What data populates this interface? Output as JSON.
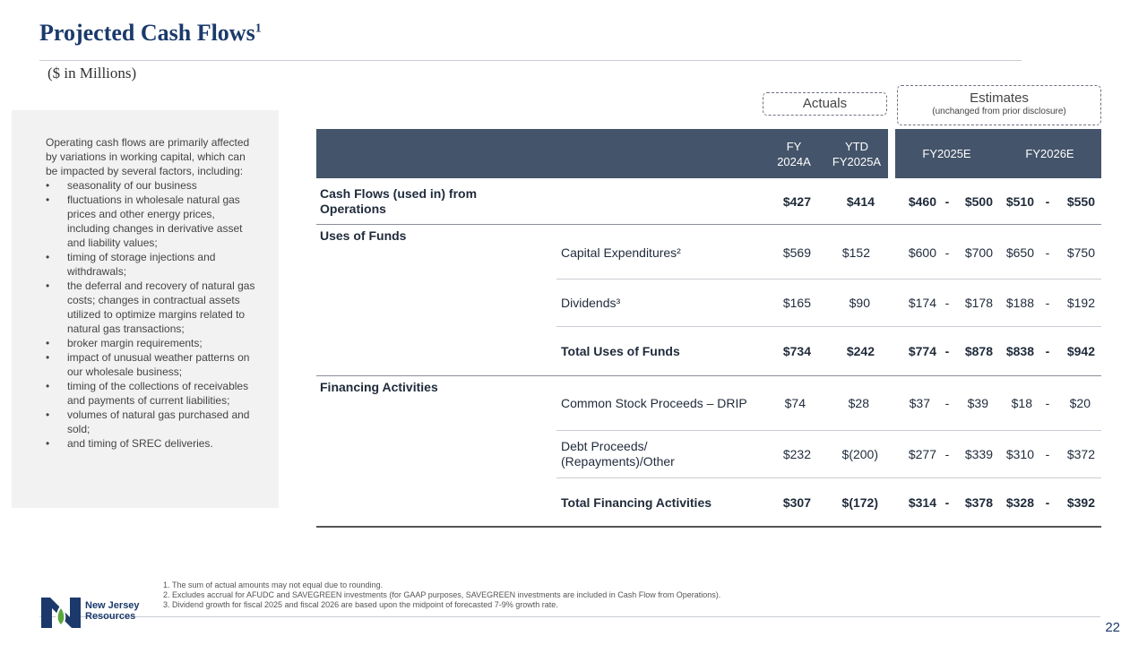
{
  "title": "Projected Cash Flows",
  "title_sup": "1",
  "subtitle": "($ in Millions)",
  "sidebar": {
    "intro": "Operating cash flows are primarily affected by variations in working capital, which can be impacted by several factors, including:",
    "bullets": [
      "seasonality of our business",
      "fluctuations in wholesale natural gas prices and other energy prices, including changes in derivative asset and liability values;",
      "timing of storage injections and withdrawals;",
      "the deferral and recovery of natural gas costs; changes in contractual assets utilized to optimize margins related to natural gas transactions;",
      "broker margin requirements;",
      "impact of unusual weather patterns on our wholesale business;",
      "timing of the collections of receivables and payments of current liabilities;",
      "volumes of natural gas purchased and sold;",
      "and timing of SREC deliveries."
    ]
  },
  "groups": {
    "actuals": "Actuals",
    "estimates": "Estimates",
    "estimates_note": "(unchanged from prior disclosure)"
  },
  "columns": {
    "fy2024a_l1": "FY",
    "fy2024a_l2": "2024A",
    "ytd_l1": "YTD",
    "ytd_l2": "FY2025A",
    "fy2025e": "FY2025E",
    "fy2026e": "FY2026E"
  },
  "rows": {
    "ops": {
      "label_l1": "Cash Flows (used in) from",
      "label_l2": "Operations",
      "fy24": "$427",
      "ytd": "$414",
      "e25_lo": "$460",
      "e25_hi": "$500",
      "e26_lo": "$510",
      "e26_hi": "$550"
    },
    "uses_title": "Uses of Funds",
    "capex": {
      "label": "Capital Expenditures²",
      "fy24": "$569",
      "ytd": "$152",
      "e25_lo": "$600",
      "e25_hi": "$700",
      "e26_lo": "$650",
      "e26_hi": "$750"
    },
    "dividends": {
      "label": "Dividends³",
      "fy24": "$165",
      "ytd": "$90",
      "e25_lo": "$174",
      "e25_hi": "$178",
      "e26_lo": "$188",
      "e26_hi": "$192"
    },
    "total_uses": {
      "label": "Total Uses of Funds",
      "fy24": "$734",
      "ytd": "$242",
      "e25_lo": "$774",
      "e25_hi": "$878",
      "e26_lo": "$838",
      "e26_hi": "$942"
    },
    "fin_title": "Financing Activities",
    "drip": {
      "label": "Common Stock Proceeds – DRIP",
      "fy24": "$74",
      "ytd": "$28",
      "e25_lo": "$37",
      "e25_hi": "$39",
      "e26_lo": "$18",
      "e26_hi": "$20"
    },
    "debt": {
      "label_l1": "Debt Proceeds/",
      "label_l2": "(Repayments)/Other",
      "fy24": "$232",
      "ytd": "$(200)",
      "e25_lo": "$277",
      "e25_hi": "$339",
      "e26_lo": "$310",
      "e26_hi": "$372"
    },
    "total_fin": {
      "label": "Total Financing Activities",
      "fy24": "$307",
      "ytd": "$(172)",
      "e25_lo": "$314",
      "e25_hi": "$378",
      "e26_lo": "$328",
      "e26_hi": "$392"
    },
    "range_sep": "-"
  },
  "footnotes": [
    "The sum of actual amounts may not equal due to rounding.",
    "Excludes accrual for AFUDC and SAVEGREEN investments (for GAAP purposes, SAVEGREEN investments are included in Cash Flow from Operations).",
    "Dividend growth for fiscal 2025 and fiscal 2026 are based upon the midpoint of forecasted 7-9% growth rate."
  ],
  "logo": {
    "line1": "New Jersey",
    "line2": "Resources"
  },
  "page_number": "22",
  "colors": {
    "header_bg": "#44546a",
    "title": "#1b3a6b",
    "sidebar_bg": "#f2f2f2",
    "logo_green": "#5aa83c"
  }
}
